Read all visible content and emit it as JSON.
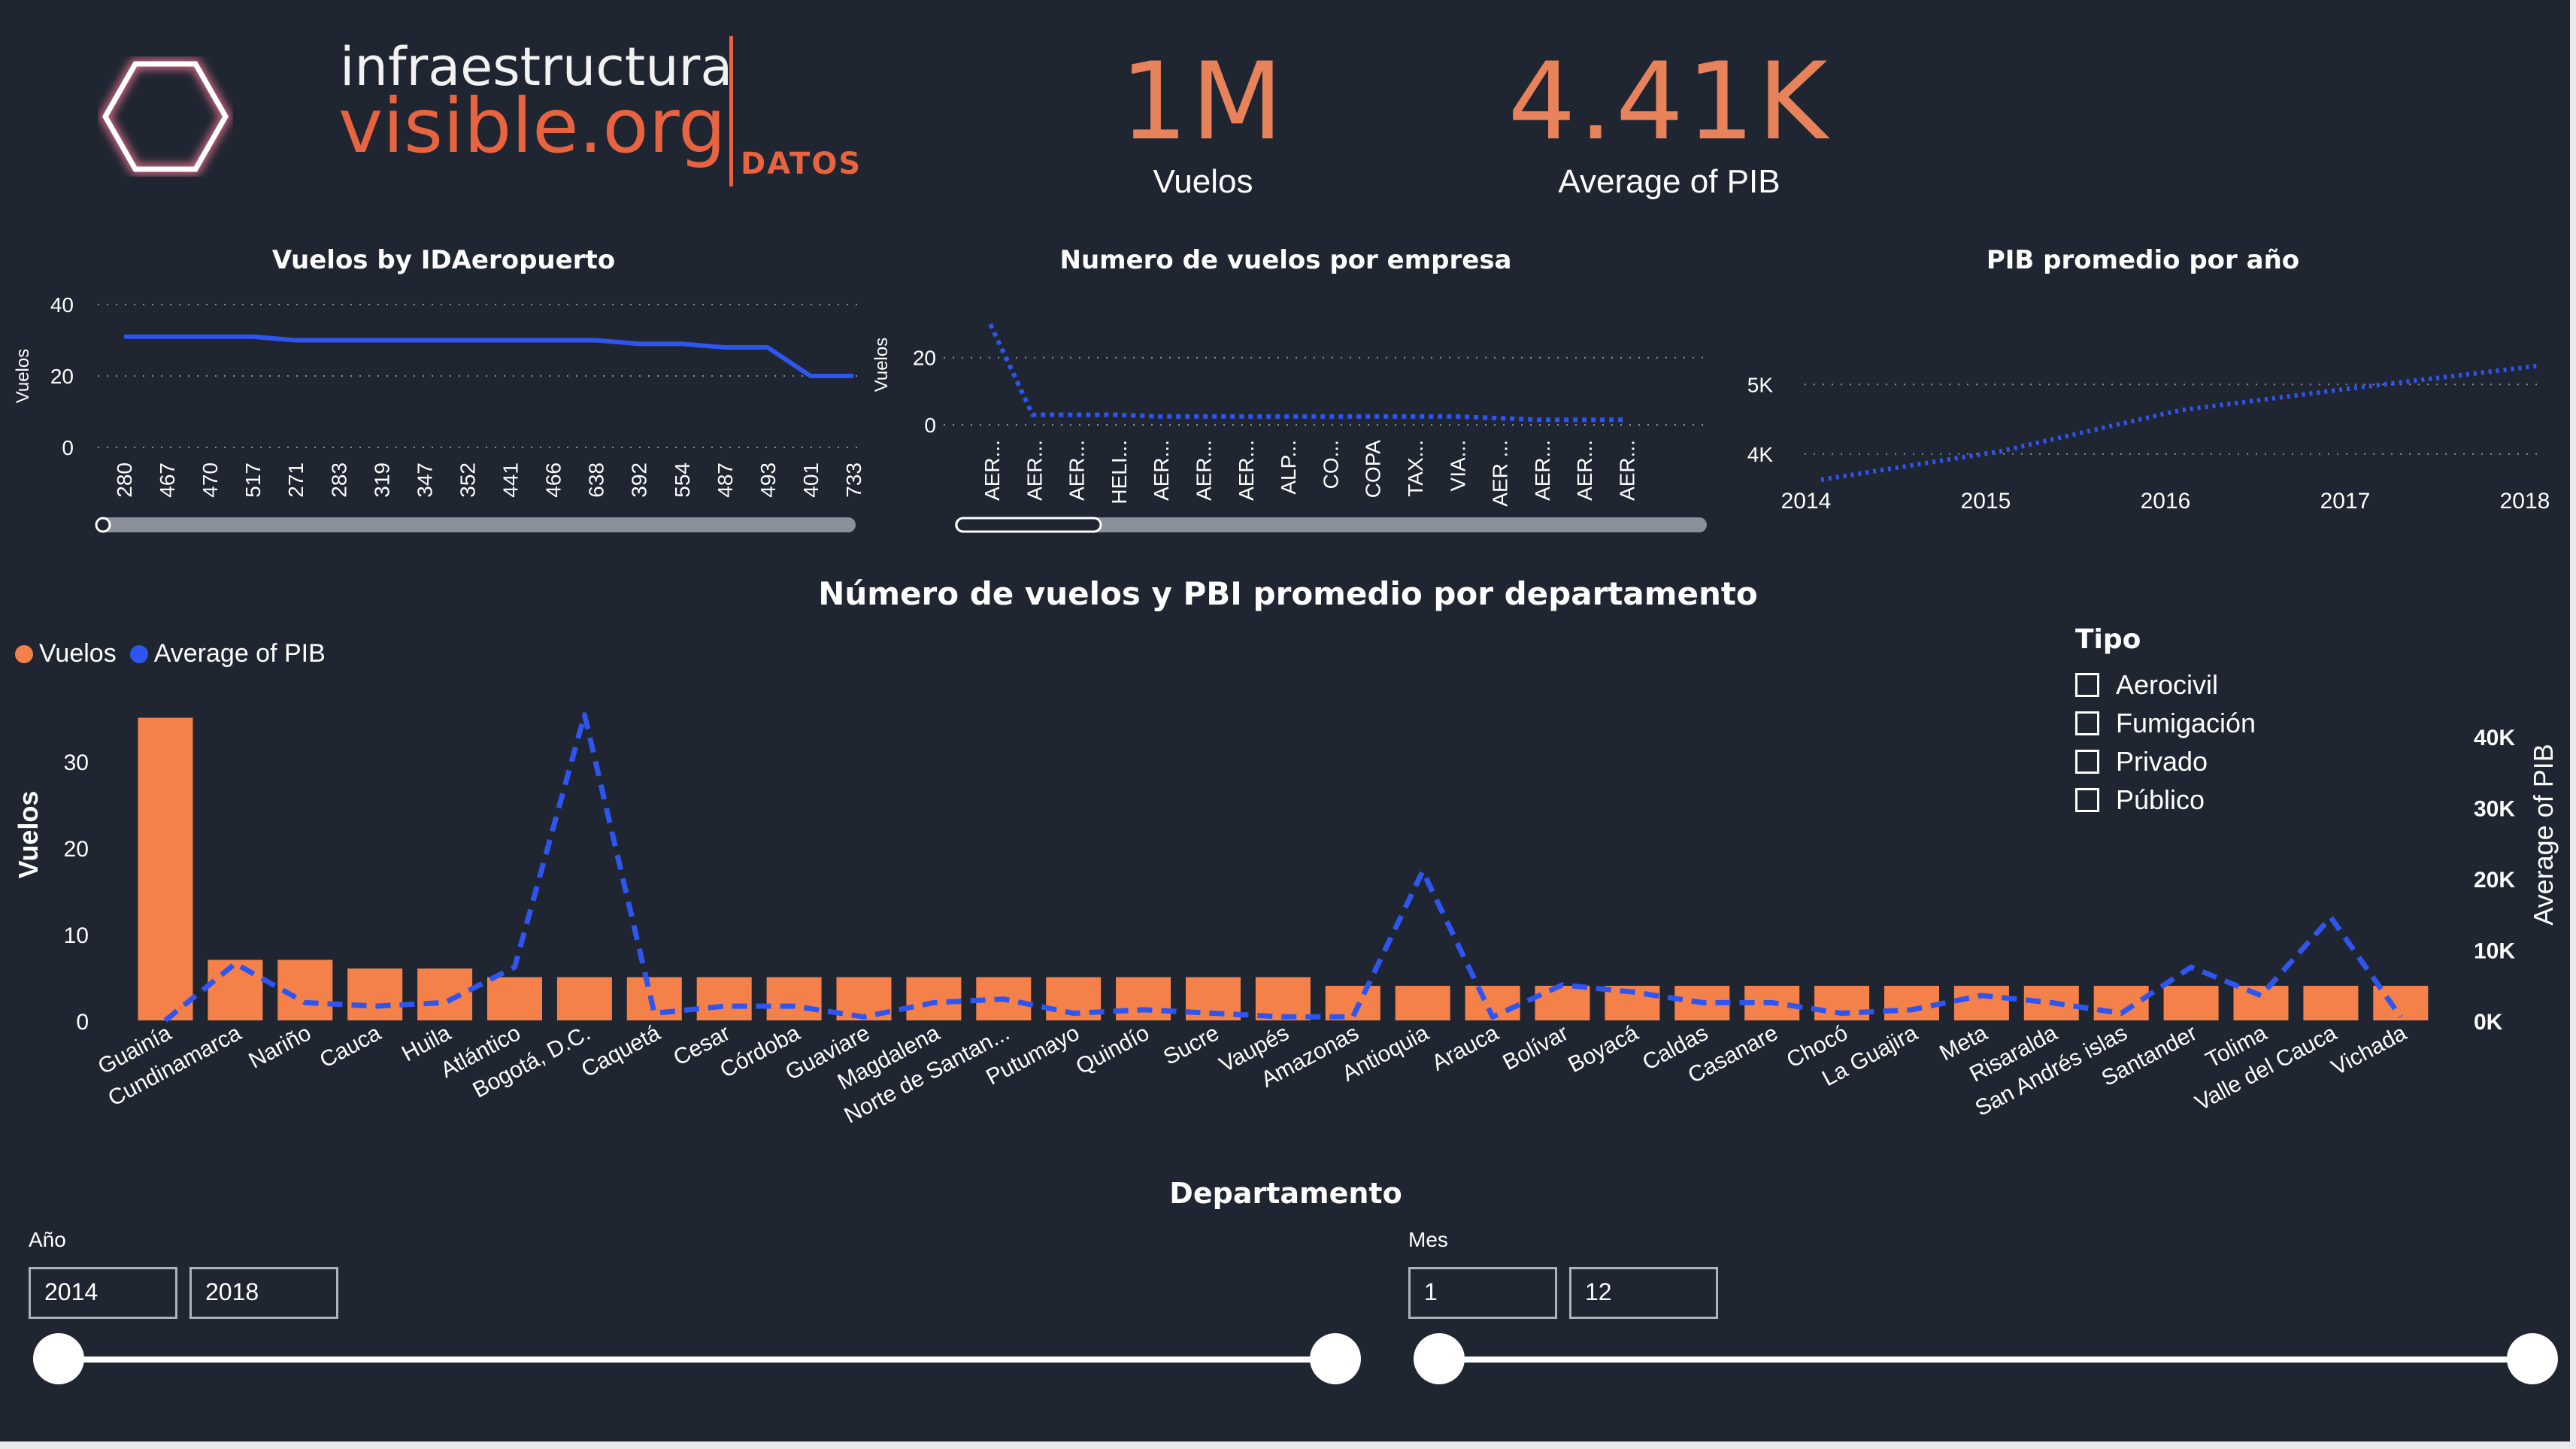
{
  "logo": {
    "line1": "infraestructura",
    "line2": "visible.org",
    "tag": "DATOS"
  },
  "kpis": [
    {
      "value": "1M",
      "label": "Vuelos"
    },
    {
      "value": "4.41K",
      "label": "Average of PIB"
    }
  ],
  "colors": {
    "orange": "#f4814a",
    "blue": "#2f55f0",
    "background": "#1f2631"
  },
  "chart_data": [
    {
      "type": "line",
      "title": "Vuelos by IDAeropuerto",
      "ylabel": "Vuelos",
      "yticks": [
        "40",
        "20",
        "0"
      ],
      "ylim": [
        0,
        40
      ],
      "categories": [
        "280",
        "467",
        "470",
        "517",
        "271",
        "283",
        "319",
        "347",
        "352",
        "441",
        "466",
        "638",
        "392",
        "554",
        "487",
        "493",
        "401",
        "733"
      ],
      "values": [
        31,
        31,
        31,
        31,
        30,
        30,
        30,
        30,
        30,
        30,
        30,
        30,
        29,
        29,
        28,
        28,
        20,
        20
      ]
    },
    {
      "type": "line",
      "title": "Numero de vuelos por empresa",
      "ylabel": "Vuelos",
      "yticks": [
        "20",
        "0"
      ],
      "ylim": [
        0,
        28
      ],
      "categories": [
        "AER...",
        "AER...",
        "AER...",
        "HELI...",
        "AER...",
        "AER...",
        "AER...",
        "ALP...",
        "CO...",
        "COPA",
        "TAX...",
        "VIA...",
        "AER ...",
        "AER...",
        "AER...",
        "AER..."
      ],
      "values": [
        30,
        3,
        3,
        3,
        2.5,
        2.5,
        2.5,
        2.5,
        2.5,
        2.5,
        2.5,
        2.5,
        2,
        1.5,
        1.5,
        1.5
      ]
    },
    {
      "type": "line",
      "title": "PIB promedio por año",
      "yticks": [
        "5K",
        "4K"
      ],
      "ylim": [
        3500,
        5500
      ],
      "categories": [
        "2014",
        "2015",
        "2016",
        "2017",
        "2018"
      ],
      "values": [
        3630,
        4040,
        4630,
        4960,
        5270
      ]
    },
    {
      "type": "bar",
      "title": "Número de vuelos y PBI promedio por departamento",
      "xlabel": "Departamento",
      "ylabel": "Vuelos",
      "y2label": "Average of PIB",
      "legend": [
        "Vuelos",
        "Average of PIB"
      ],
      "yticks": [
        "30",
        "20",
        "10",
        "0"
      ],
      "y2ticks": [
        "40K",
        "30K",
        "20K",
        "10K",
        "0K"
      ],
      "ylim": [
        0,
        35
      ],
      "y2lim": [
        0,
        45000
      ],
      "categories": [
        "Guainía",
        "Cundinamarca",
        "Nariño",
        "Cauca",
        "Huila",
        "Atlántico",
        "Bogotá, D.C.",
        "Caquetá",
        "Cesar",
        "Córdoba",
        "Guaviare",
        "Magdalena",
        "Norte de Santan...",
        "Putumayo",
        "Quindío",
        "Sucre",
        "Vaupés",
        "Amazonas",
        "Antioquia",
        "Arauca",
        "Bolívar",
        "Boyacá",
        "Caldas",
        "Casanare",
        "Chocó",
        "La Guajira",
        "Meta",
        "Risaralda",
        "San Andrés islas",
        "Santander",
        "Tolima",
        "Valle del Cauca",
        "Vichada"
      ],
      "series": [
        {
          "name": "Vuelos",
          "values": [
            35,
            7,
            7,
            6,
            6,
            5,
            5,
            5,
            5,
            5,
            5,
            5,
            5,
            5,
            5,
            5,
            5,
            4,
            4,
            4,
            4,
            4,
            4,
            4,
            4,
            4,
            4,
            4,
            4,
            4,
            4,
            4,
            4
          ]
        },
        {
          "name": "Average of PIB",
          "values": [
            0,
            8000,
            2500,
            2000,
            2500,
            7500,
            43000,
            1000,
            2000,
            2000,
            500,
            2500,
            3000,
            1000,
            1500,
            1000,
            500,
            500,
            21000,
            500,
            5000,
            4000,
            2500,
            2500,
            1000,
            1500,
            3500,
            2500,
            1000,
            7500,
            3500,
            14500,
            500
          ]
        }
      ]
    }
  ],
  "tipo": {
    "title": "Tipo",
    "options": [
      "Aerocivil",
      "Fumigación",
      "Privado",
      "Público"
    ]
  },
  "slicers": [
    {
      "label": "Año",
      "from": "2014",
      "to": "2018"
    },
    {
      "label": "Mes",
      "from": "1",
      "to": "12"
    }
  ]
}
